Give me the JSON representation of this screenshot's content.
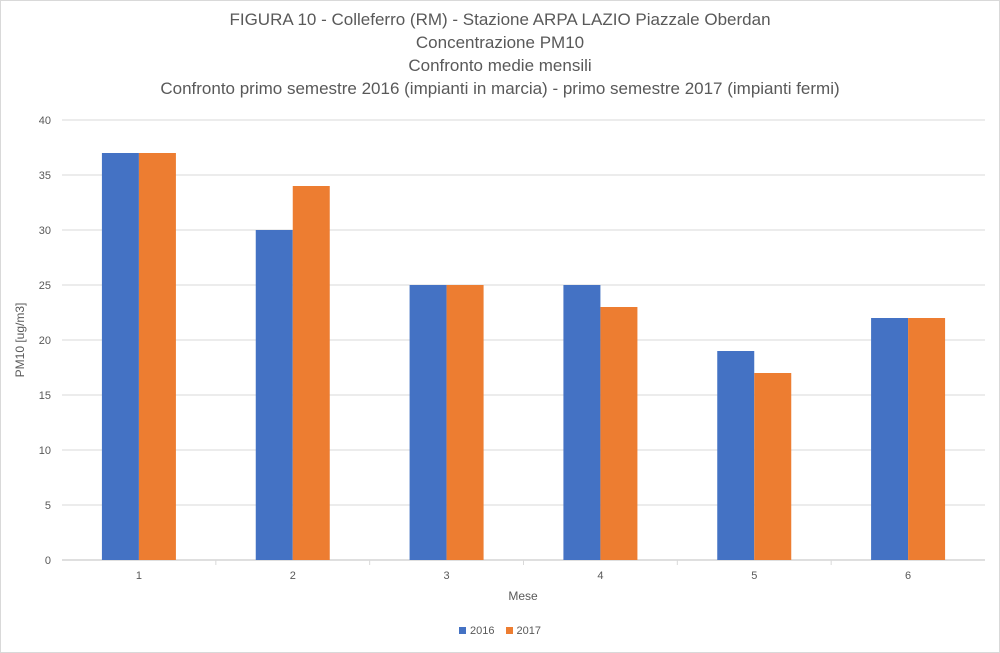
{
  "chart_data": {
    "type": "bar",
    "title_lines": [
      "FIGURA 10 - Colleferro  (RM) - Stazione ARPA LAZIO Piazzale Oberdan",
      "Concentrazione PM10",
      "Confronto medie mensili",
      "Confronto primo semestre  2016 (impianti  in marcia)  - primo semestre  2017 (impianti fermi)"
    ],
    "xlabel": "Mese",
    "ylabel": "PM10 [ug/m3]",
    "categories": [
      "1",
      "2",
      "3",
      "4",
      "5",
      "6"
    ],
    "series": [
      {
        "name": "2016",
        "color": "#4472c4",
        "values": [
          37,
          30,
          25,
          25,
          19,
          22
        ]
      },
      {
        "name": "2017",
        "color": "#ed7d31",
        "values": [
          37,
          34,
          25,
          23,
          17,
          22
        ]
      }
    ],
    "ylim": [
      0,
      40
    ],
    "yticks": [
      0,
      5,
      10,
      15,
      20,
      25,
      30,
      35,
      40
    ],
    "grid": true,
    "legend_position": "bottom"
  }
}
